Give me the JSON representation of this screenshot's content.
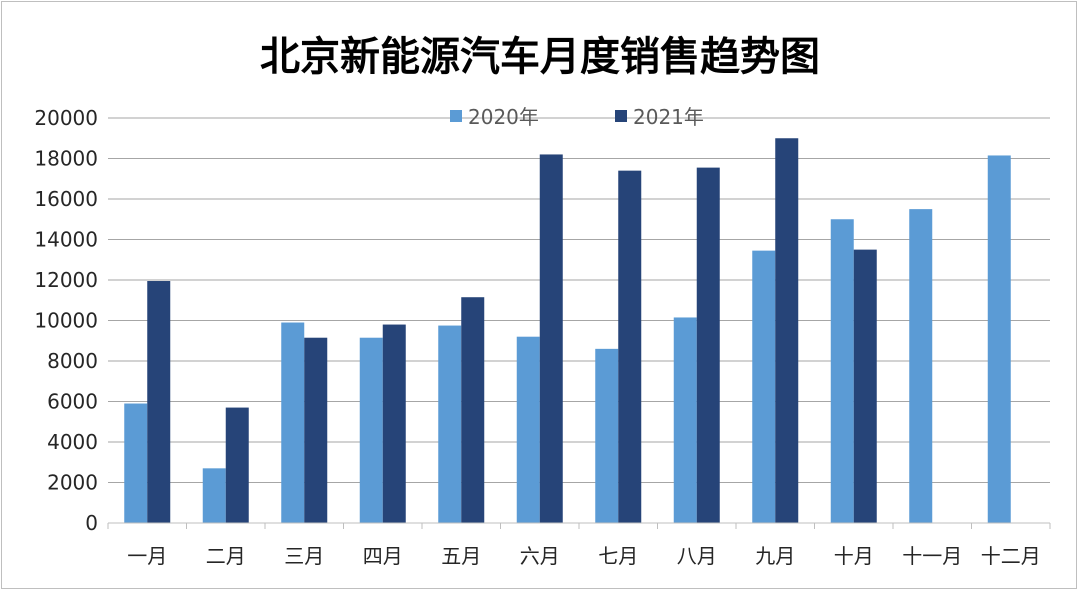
{
  "chart_data": {
    "type": "bar",
    "title": "北京新能源汽车月度销售趋势图",
    "categories": [
      "一月",
      "二月",
      "三月",
      "四月",
      "五月",
      "六月",
      "七月",
      "八月",
      "九月",
      "十月",
      "十一月",
      "十二月"
    ],
    "series": [
      {
        "name": "2020年",
        "color": "#5b9bd5",
        "values": [
          5900,
          2700,
          9900,
          9150,
          9750,
          9200,
          8600,
          10150,
          13450,
          15000,
          15500,
          18150
        ]
      },
      {
        "name": "2021年",
        "color": "#264478",
        "values": [
          11950,
          5700,
          9150,
          9800,
          11150,
          18200,
          17400,
          17550,
          19000,
          13500,
          null,
          null
        ]
      }
    ],
    "ylim": [
      0,
      20000
    ],
    "yticks": [
      0,
      2000,
      4000,
      6000,
      8000,
      10000,
      12000,
      14000,
      16000,
      18000,
      20000
    ],
    "grid": true,
    "legend_position": "top-center"
  }
}
